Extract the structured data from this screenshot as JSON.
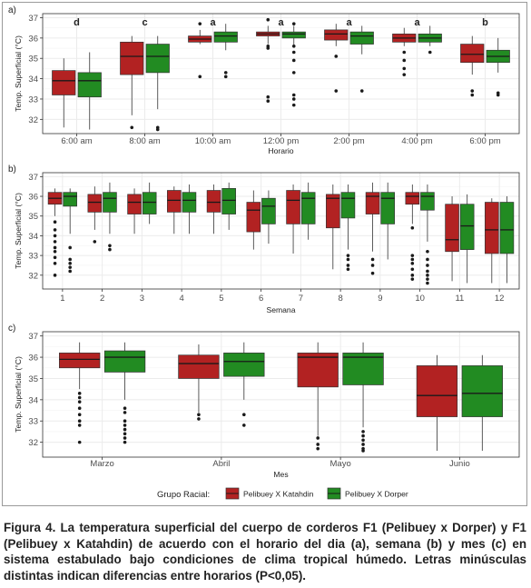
{
  "caption": "Figura 4. La temperatura superficial del cuerpo de corderos F1 (Pelibuey x Dorper) y F1 (Pelibuey x Katahdin) de acuerdo con el horario del dia (a), semana (b) y mes (c) en sistema estabulado bajo condiciones de clima tropical húmedo. Letras minúsculas distintas indican diferencias entre horarios (P<0,05).",
  "colors": {
    "katahdin": "#B22222",
    "dorper": "#228B22",
    "panel_bg": "#ffffff",
    "grid": "#ebebeb"
  },
  "legend": {
    "title": "Grupo Racial:",
    "items": [
      {
        "label": "Pelibuey X Katahdin",
        "color": "#B22222"
      },
      {
        "label": "Pelibuey X Dorper",
        "color": "#228B22"
      }
    ],
    "position": "bottom"
  },
  "chart_data": [
    {
      "panel": "a)",
      "type": "boxplot",
      "xlabel": "Horario",
      "ylabel": "Temp. Superficial (°C)",
      "ylim": [
        31.3,
        37.2
      ],
      "yticks": [
        32,
        33,
        34,
        35,
        36,
        37
      ],
      "categories": [
        "6:00 am",
        "8:00 am",
        "10:00 am",
        "12:00 pm",
        "2:00 pm",
        "4:00 pm",
        "6:00 pm"
      ],
      "letters": [
        "d",
        "c",
        "a",
        "a",
        "a",
        "a",
        "b"
      ],
      "series": [
        {
          "name": "Pelibuey X Katahdin",
          "boxes": [
            {
              "min": 31.6,
              "q1": 33.2,
              "med": 33.9,
              "q3": 34.4,
              "max": 35.0,
              "out": []
            },
            {
              "min": 32.2,
              "q1": 34.2,
              "med": 35.1,
              "q3": 35.8,
              "max": 36.1,
              "out": [
                31.6
              ]
            },
            {
              "min": 35.7,
              "q1": 35.8,
              "med": 35.95,
              "q3": 36.1,
              "max": 36.4,
              "out": [
                34.1,
                36.7
              ]
            },
            {
              "min": 35.7,
              "q1": 36.1,
              "med": 36.2,
              "q3": 36.3,
              "max": 36.6,
              "out": [
                35.6,
                35.5,
                33.1,
                32.9,
                36.9
              ]
            },
            {
              "min": 35.6,
              "q1": 35.9,
              "med": 36.2,
              "q3": 36.4,
              "max": 36.7,
              "out": [
                35.1,
                33.4
              ]
            },
            {
              "min": 35.6,
              "q1": 35.8,
              "med": 36.0,
              "q3": 36.2,
              "max": 36.5,
              "out": [
                35.3,
                34.9,
                34.5,
                34.2
              ]
            },
            {
              "min": 34.2,
              "q1": 34.8,
              "med": 35.2,
              "q3": 35.7,
              "max": 36.1,
              "out": [
                33.4,
                33.2
              ]
            }
          ]
        },
        {
          "name": "Pelibuey X Dorper",
          "boxes": [
            {
              "min": 31.5,
              "q1": 33.1,
              "med": 33.9,
              "q3": 34.3,
              "max": 35.3,
              "out": []
            },
            {
              "min": 32.5,
              "q1": 34.3,
              "med": 35.1,
              "q3": 35.7,
              "max": 36.1,
              "out": [
                31.6,
                31.5
              ]
            },
            {
              "min": 35.4,
              "q1": 35.8,
              "med": 36.1,
              "q3": 36.3,
              "max": 36.7,
              "out": [
                34.3,
                34.1
              ]
            },
            {
              "min": 35.6,
              "q1": 36.0,
              "med": 36.2,
              "q3": 36.3,
              "max": 36.6,
              "out": [
                36.7,
                35.6,
                35.3,
                34.3,
                33.2,
                33.0,
                32.7,
                34.9
              ]
            },
            {
              "min": 35.2,
              "q1": 35.7,
              "med": 36.1,
              "q3": 36.3,
              "max": 36.6,
              "out": [
                33.4
              ]
            },
            {
              "min": 35.6,
              "q1": 35.8,
              "med": 36.0,
              "q3": 36.2,
              "max": 36.6,
              "out": [
                35.3
              ]
            },
            {
              "min": 34.3,
              "q1": 34.8,
              "med": 35.1,
              "q3": 35.4,
              "max": 36.0,
              "out": [
                33.3,
                33.2
              ]
            }
          ]
        }
      ]
    },
    {
      "panel": "b)",
      "type": "boxplot",
      "xlabel": "Semana",
      "ylabel": "Temp. Superficial (°C)",
      "ylim": [
        31.3,
        37.2
      ],
      "yticks": [
        32,
        33,
        34,
        35,
        36,
        37
      ],
      "categories": [
        "1",
        "2",
        "3",
        "4",
        "5",
        "6",
        "7",
        "8",
        "9",
        "10",
        "11",
        "12"
      ],
      "letters": [],
      "series": [
        {
          "name": "Pelibuey X Katahdin",
          "boxes": [
            {
              "min": 35.0,
              "q1": 35.6,
              "med": 35.9,
              "q3": 36.2,
              "max": 36.4,
              "out": [
                34.7,
                34.3,
                34.0,
                33.7,
                33.4,
                33.2,
                32.9,
                32.6,
                32.0
              ]
            },
            {
              "min": 34.3,
              "q1": 35.2,
              "med": 35.7,
              "q3": 36.1,
              "max": 36.5,
              "out": [
                33.7
              ]
            },
            {
              "min": 34.1,
              "q1": 35.1,
              "med": 35.7,
              "q3": 36.1,
              "max": 36.4,
              "out": []
            },
            {
              "min": 34.1,
              "q1": 35.2,
              "med": 35.8,
              "q3": 36.3,
              "max": 36.5,
              "out": []
            },
            {
              "min": 34.1,
              "q1": 35.2,
              "med": 35.7,
              "q3": 36.3,
              "max": 36.6,
              "out": []
            },
            {
              "min": 33.3,
              "q1": 34.2,
              "med": 35.3,
              "q3": 35.7,
              "max": 36.3,
              "out": []
            },
            {
              "min": 33.1,
              "q1": 34.6,
              "med": 35.8,
              "q3": 36.3,
              "max": 36.6,
              "out": []
            },
            {
              "min": 32.3,
              "q1": 34.4,
              "med": 35.9,
              "q3": 36.1,
              "max": 36.6,
              "out": []
            },
            {
              "min": 33.2,
              "q1": 35.1,
              "med": 36.0,
              "q3": 36.2,
              "max": 36.7,
              "out": [
                32.8,
                32.5,
                32.1
              ]
            },
            {
              "min": 34.6,
              "q1": 35.6,
              "med": 36.0,
              "q3": 36.2,
              "max": 36.6,
              "out": [
                34.4,
                33.0,
                32.8,
                32.6,
                32.3,
                32.0,
                31.8
              ]
            },
            {
              "min": 31.7,
              "q1": 33.2,
              "med": 33.8,
              "q3": 35.6,
              "max": 36.0,
              "out": []
            },
            {
              "min": 31.6,
              "q1": 33.1,
              "med": 34.3,
              "q3": 35.7,
              "max": 35.9,
              "out": []
            }
          ]
        },
        {
          "name": "Pelibuey X Dorper",
          "boxes": [
            {
              "min": 34.1,
              "q1": 35.5,
              "med": 36.0,
              "q3": 36.2,
              "max": 36.4,
              "out": [
                33.4,
                32.8,
                32.6,
                32.4,
                32.2
              ]
            },
            {
              "min": 34.1,
              "q1": 35.2,
              "med": 35.9,
              "q3": 36.2,
              "max": 36.7,
              "out": [
                33.5,
                33.3
              ]
            },
            {
              "min": 34.6,
              "q1": 35.1,
              "med": 35.7,
              "q3": 36.2,
              "max": 36.7,
              "out": []
            },
            {
              "min": 34.1,
              "q1": 35.2,
              "med": 35.8,
              "q3": 36.2,
              "max": 36.6,
              "out": []
            },
            {
              "min": 34.3,
              "q1": 35.1,
              "med": 35.8,
              "q3": 36.4,
              "max": 36.7,
              "out": []
            },
            {
              "min": 33.6,
              "q1": 34.6,
              "med": 35.5,
              "q3": 35.9,
              "max": 36.3,
              "out": []
            },
            {
              "min": 33.8,
              "q1": 34.6,
              "med": 35.9,
              "q3": 36.2,
              "max": 36.7,
              "out": []
            },
            {
              "min": 33.3,
              "q1": 34.9,
              "med": 35.9,
              "q3": 36.2,
              "max": 36.6,
              "out": [
                33.0,
                32.8,
                32.5,
                32.3
              ]
            },
            {
              "min": 32.8,
              "q1": 34.6,
              "med": 35.9,
              "q3": 36.2,
              "max": 36.7,
              "out": []
            },
            {
              "min": 33.7,
              "q1": 35.3,
              "med": 36.0,
              "q3": 36.2,
              "max": 36.6,
              "out": [
                33.2,
                32.8,
                32.5,
                32.2,
                32.0,
                31.8,
                31.6
              ]
            },
            {
              "min": 31.6,
              "q1": 33.3,
              "med": 34.5,
              "q3": 35.6,
              "max": 36.1,
              "out": []
            },
            {
              "min": 31.6,
              "q1": 33.1,
              "med": 34.3,
              "q3": 35.7,
              "max": 36.0,
              "out": []
            }
          ]
        }
      ]
    },
    {
      "panel": "c)",
      "type": "boxplot",
      "xlabel": "Mes",
      "ylabel": "Temp. Superficial (°C)",
      "ylim": [
        31.3,
        37.2
      ],
      "yticks": [
        32,
        33,
        34,
        35,
        36,
        37
      ],
      "categories": [
        "Marzo",
        "Abril",
        "Mayo",
        "Junio"
      ],
      "letters": [],
      "series": [
        {
          "name": "Pelibuey X Katahdin",
          "boxes": [
            {
              "min": 34.5,
              "q1": 35.5,
              "med": 35.9,
              "q3": 36.2,
              "max": 36.7,
              "out": [
                34.3,
                34.1,
                33.9,
                33.6,
                33.3,
                33.0,
                32.8,
                32.0
              ]
            },
            {
              "min": 33.4,
              "q1": 35.0,
              "med": 35.7,
              "q3": 36.1,
              "max": 36.6,
              "out": [
                33.3,
                33.1
              ]
            },
            {
              "min": 32.3,
              "q1": 34.6,
              "med": 36.0,
              "q3": 36.2,
              "max": 36.7,
              "out": [
                32.2,
                31.9,
                31.7
              ]
            },
            {
              "min": 31.6,
              "q1": 33.2,
              "med": 34.2,
              "q3": 35.6,
              "max": 36.1,
              "out": []
            }
          ]
        },
        {
          "name": "Pelibuey X Dorper",
          "boxes": [
            {
              "min": 34.0,
              "q1": 35.3,
              "med": 36.0,
              "q3": 36.3,
              "max": 36.7,
              "out": [
                33.6,
                33.4,
                33.0,
                32.8,
                32.6,
                32.4,
                32.2,
                32.0
              ]
            },
            {
              "min": 34.0,
              "q1": 35.1,
              "med": 35.8,
              "q3": 36.2,
              "max": 36.7,
              "out": [
                33.3,
                32.8
              ]
            },
            {
              "min": 32.7,
              "q1": 34.7,
              "med": 36.0,
              "q3": 36.2,
              "max": 36.7,
              "out": [
                32.5,
                32.3,
                32.1,
                31.9,
                31.7,
                31.6
              ]
            },
            {
              "min": 31.6,
              "q1": 33.2,
              "med": 34.3,
              "q3": 35.6,
              "max": 36.1,
              "out": []
            }
          ]
        }
      ]
    }
  ]
}
